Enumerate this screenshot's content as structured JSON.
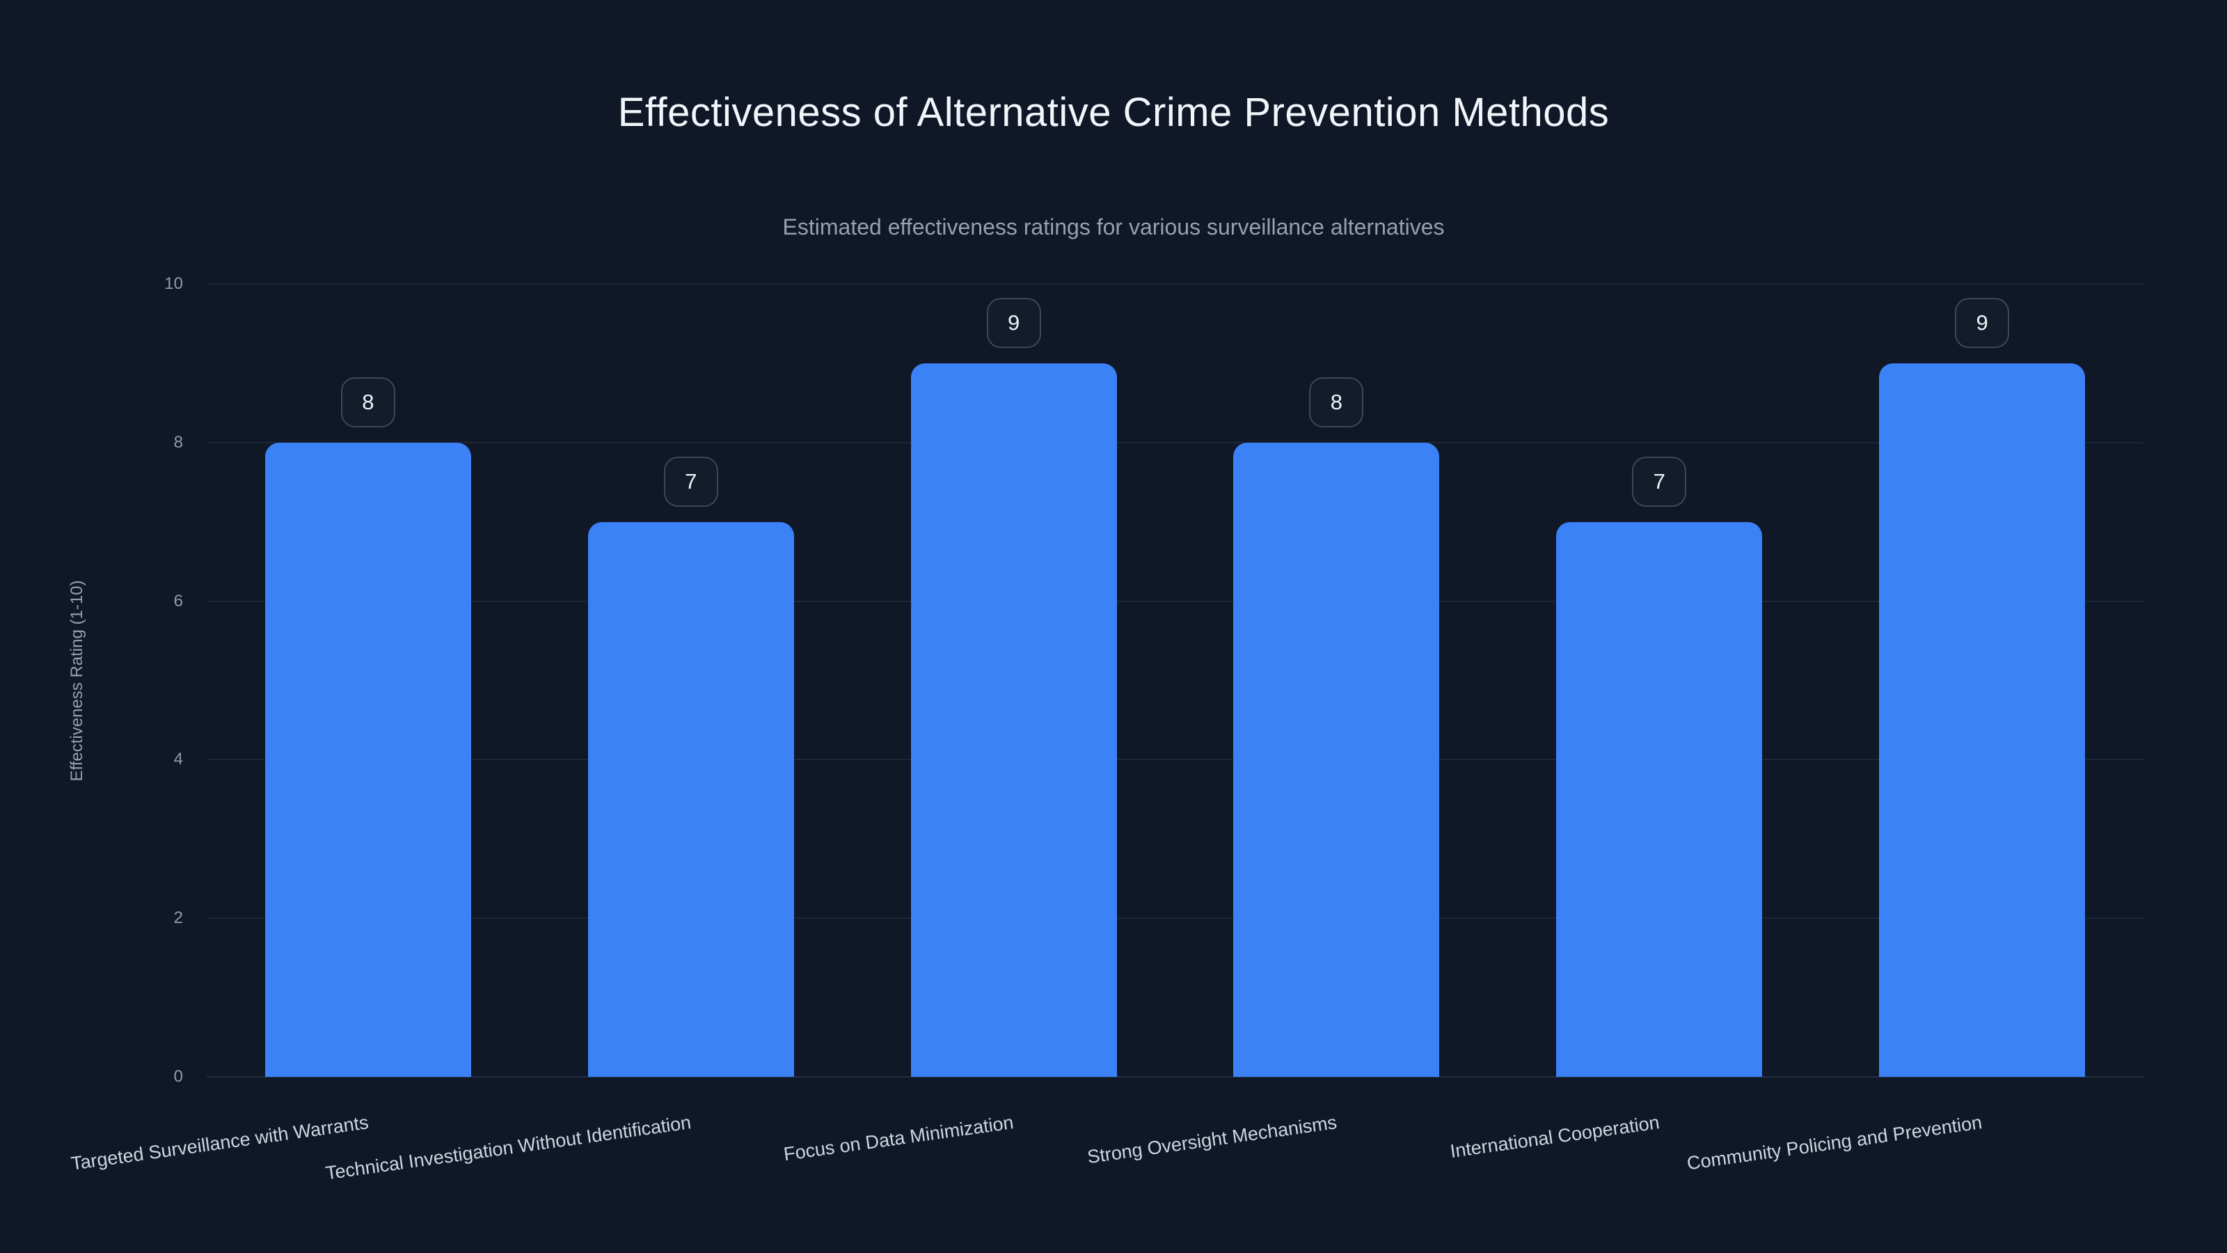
{
  "chart_data": {
    "type": "bar",
    "title": "Effectiveness of Alternative Crime Prevention Methods",
    "subtitle": "Estimated effectiveness ratings for various surveillance alternatives",
    "categories": [
      "Targeted Surveillance with Warrants",
      "Technical Investigation Without Identification",
      "Focus on Data Minimization",
      "Strong Oversight Mechanisms",
      "International Cooperation",
      "Community Policing and Prevention"
    ],
    "values": [
      8,
      7,
      9,
      8,
      7,
      9
    ],
    "value_labels": [
      "8",
      "7",
      "9",
      "8",
      "7",
      "9"
    ],
    "xlabel": "",
    "ylabel": "Effectiveness Rating (1-10)",
    "yticks": [
      0,
      2,
      4,
      6,
      8,
      10
    ],
    "ylim": [
      0,
      10
    ],
    "legend": null,
    "grid": true,
    "colors": {
      "background": "#101726",
      "bar": "#3b82f6",
      "gridline": "#1c2739",
      "title_text": "#f2f6fb",
      "subtitle_text": "#94a1b3",
      "tick_text": "#8e9bb0",
      "category_text": "#ccd6e2",
      "badge_border": "#3b4859",
      "badge_text": "#eef2f8"
    }
  }
}
